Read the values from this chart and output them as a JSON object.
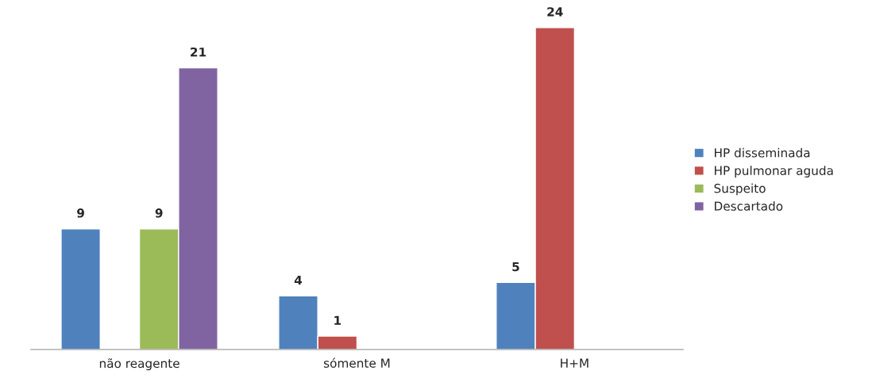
{
  "chart_data": {
    "type": "bar",
    "categories": [
      "não reagente",
      "sómente M",
      "H+M"
    ],
    "series": [
      {
        "name": "HP disseminada",
        "color": "#4f81bd",
        "values": [
          9,
          4,
          5
        ]
      },
      {
        "name": "HP pulmonar aguda",
        "color": "#c0504d",
        "values": [
          null,
          1,
          24
        ]
      },
      {
        "name": "Suspeito",
        "color": "#9bbb59",
        "values": [
          9,
          null,
          null
        ]
      },
      {
        "name": "Descartado",
        "color": "#8064a2",
        "values": [
          21,
          null,
          null
        ]
      }
    ],
    "data_labels": true,
    "legend": "right"
  }
}
